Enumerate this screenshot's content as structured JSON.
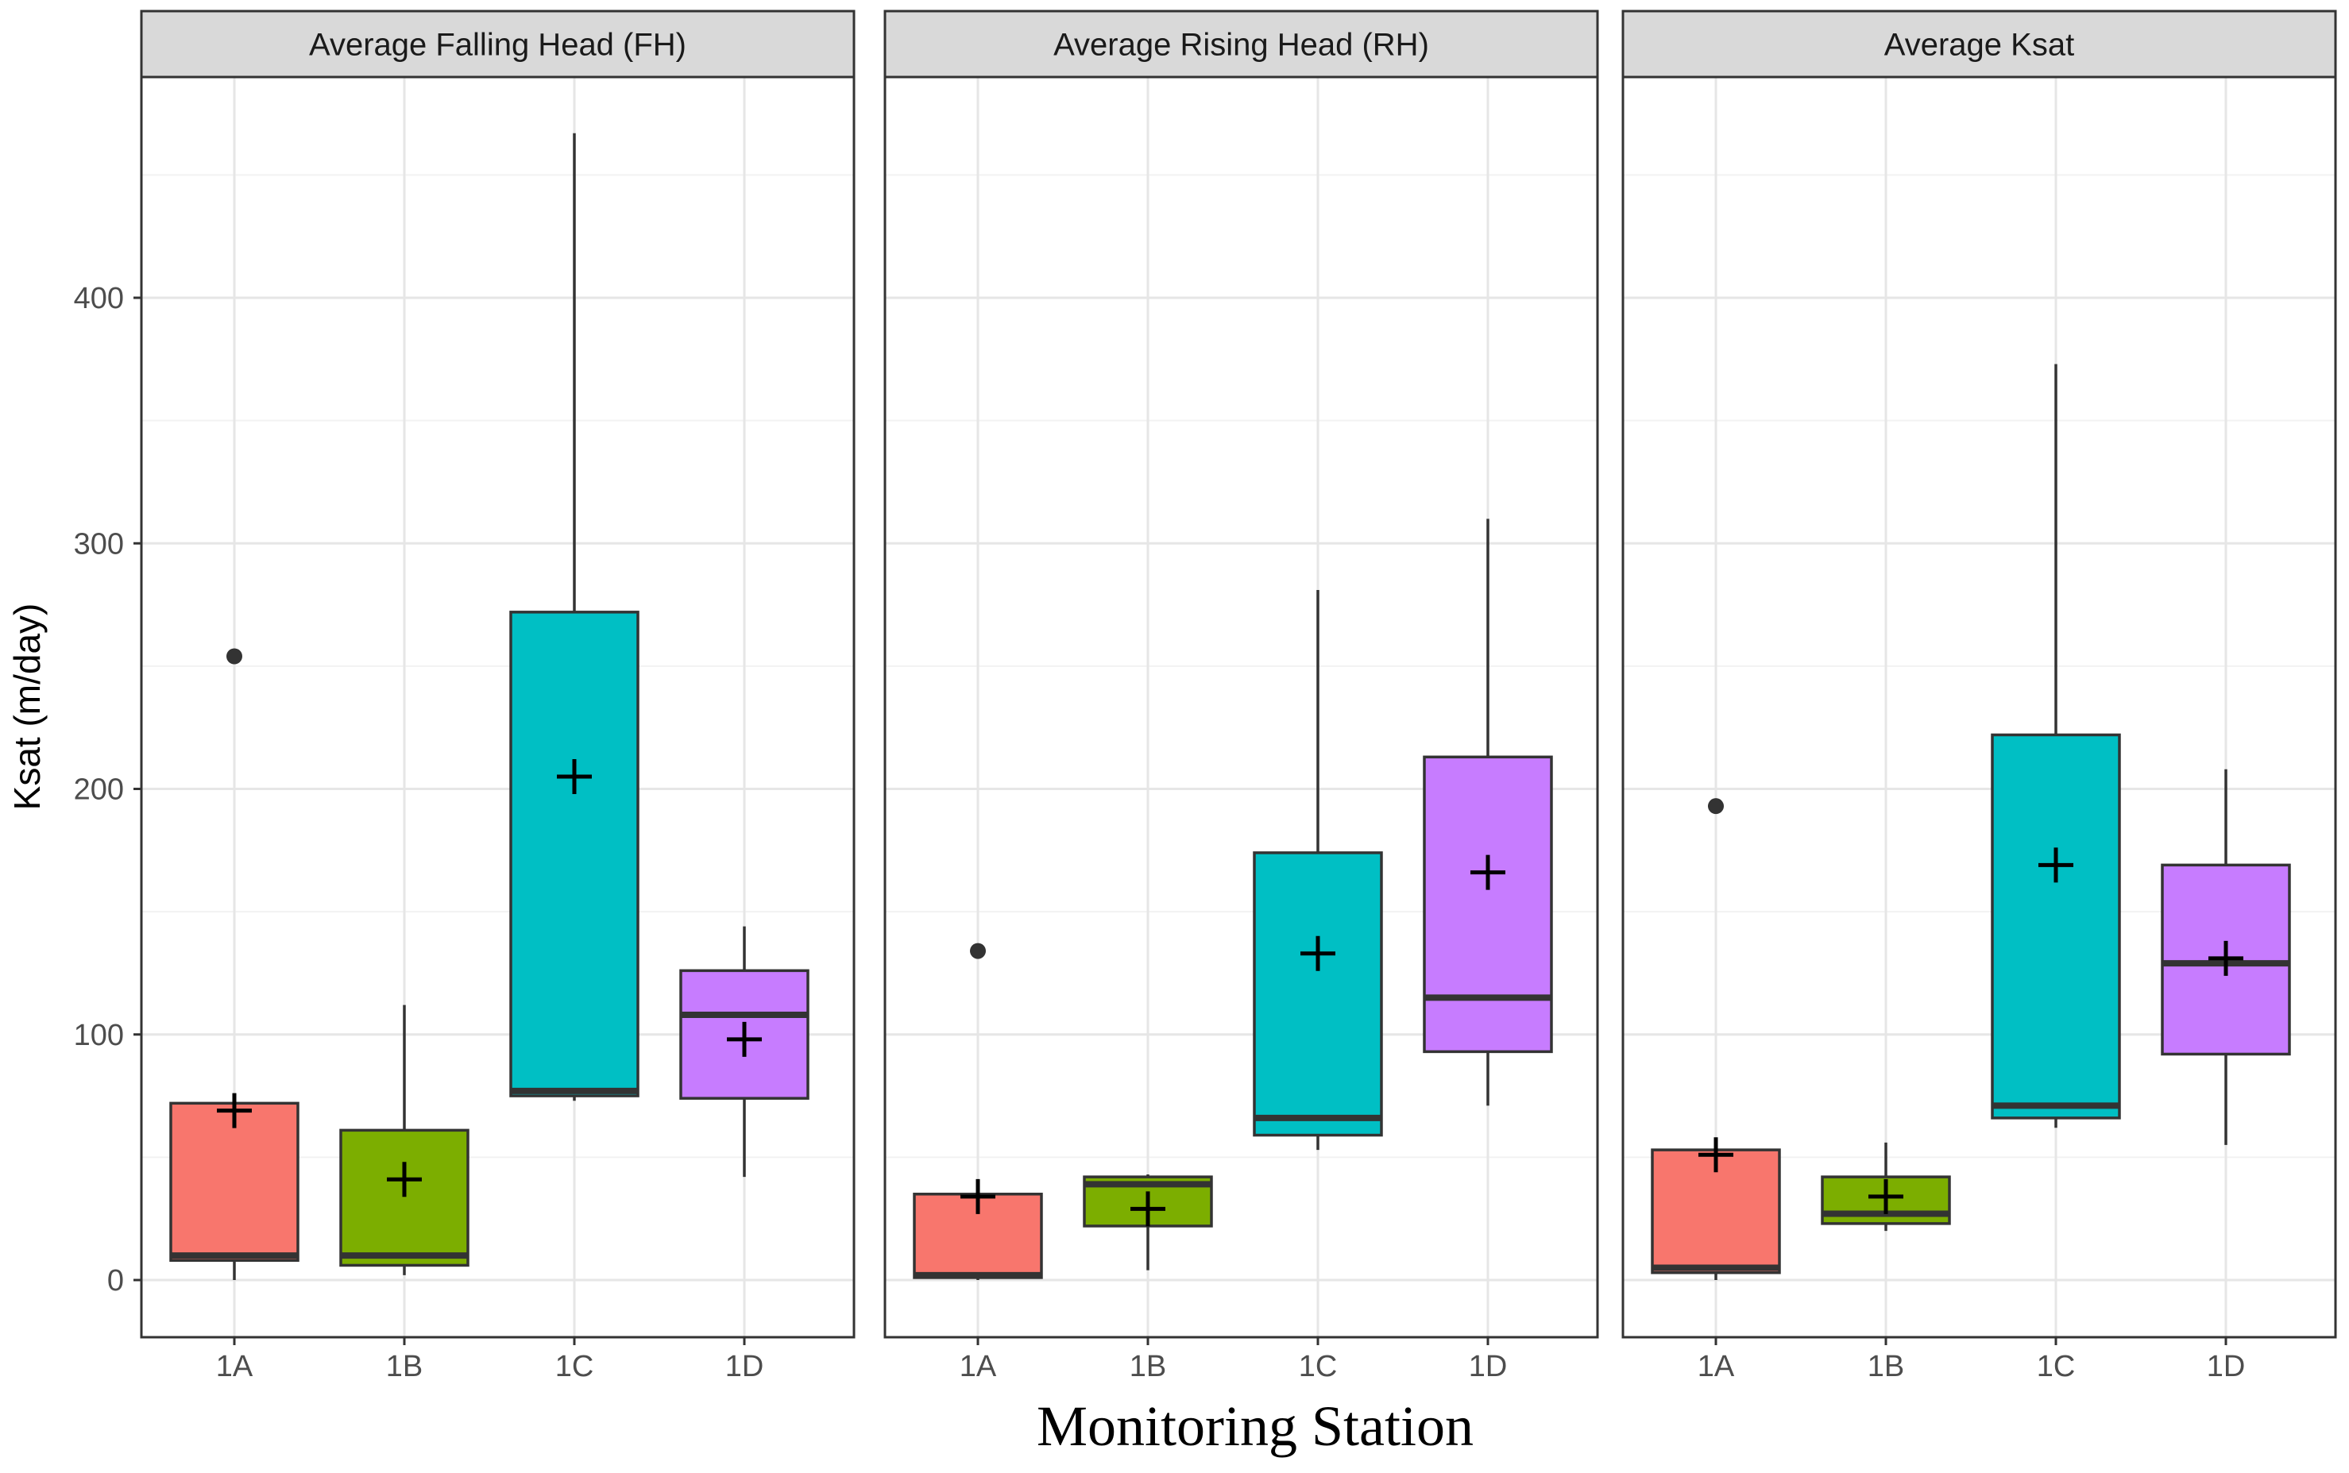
{
  "chart_data": {
    "type": "boxplot",
    "title": "",
    "xlabel": "Monitoring Station",
    "ylabel": "Ksat (m/day)",
    "categories": [
      "1A",
      "1B",
      "1C",
      "1D"
    ],
    "colors": [
      "#F8766D",
      "#7CAE00",
      "#00BFC4",
      "#C77CFF"
    ],
    "ylim": [
      -20,
      490
    ],
    "yticks": [
      0,
      100,
      200,
      300,
      400
    ],
    "grid": true,
    "legend": "none",
    "panels": [
      {
        "title": "Average Falling Head (FH)",
        "boxes": [
          {
            "category": "1A",
            "lower_whisker": 0,
            "q1": 8,
            "median": 10,
            "q3": 72,
            "upper_whisker": 72,
            "mean": 69,
            "outliers": [
              254
            ]
          },
          {
            "category": "1B",
            "lower_whisker": 2,
            "q1": 6,
            "median": 10,
            "q3": 61,
            "upper_whisker": 112,
            "mean": 41,
            "outliers": []
          },
          {
            "category": "1C",
            "lower_whisker": 73,
            "q1": 75,
            "median": 77,
            "q3": 272,
            "upper_whisker": 467,
            "mean": 205,
            "outliers": []
          },
          {
            "category": "1D",
            "lower_whisker": 42,
            "q1": 74,
            "median": 108,
            "q3": 126,
            "upper_whisker": 144,
            "mean": 98,
            "outliers": []
          }
        ]
      },
      {
        "title": "Average Rising Head (RH)",
        "boxes": [
          {
            "category": "1A",
            "lower_whisker": 0,
            "q1": 1,
            "median": 2,
            "q3": 35,
            "upper_whisker": 35,
            "mean": 34,
            "outliers": [
              134
            ]
          },
          {
            "category": "1B",
            "lower_whisker": 4,
            "q1": 22,
            "median": 39,
            "q3": 42,
            "upper_whisker": 43,
            "mean": 29,
            "outliers": []
          },
          {
            "category": "1C",
            "lower_whisker": 53,
            "q1": 59,
            "median": 66,
            "q3": 174,
            "upper_whisker": 281,
            "mean": 133,
            "outliers": []
          },
          {
            "category": "1D",
            "lower_whisker": 71,
            "q1": 93,
            "median": 115,
            "q3": 213,
            "upper_whisker": 310,
            "mean": 166,
            "outliers": []
          }
        ]
      },
      {
        "title": "Average Ksat",
        "boxes": [
          {
            "category": "1A",
            "lower_whisker": 0,
            "q1": 3,
            "median": 5,
            "q3": 53,
            "upper_whisker": 53,
            "mean": 51,
            "outliers": [
              193
            ]
          },
          {
            "category": "1B",
            "lower_whisker": 20,
            "q1": 23,
            "median": 27,
            "q3": 42,
            "upper_whisker": 56,
            "mean": 34,
            "outliers": []
          },
          {
            "category": "1C",
            "lower_whisker": 62,
            "q1": 66,
            "median": 71,
            "q3": 222,
            "upper_whisker": 373,
            "mean": 169,
            "outliers": []
          },
          {
            "category": "1D",
            "lower_whisker": 55,
            "q1": 92,
            "median": 129,
            "q3": 169,
            "upper_whisker": 208,
            "mean": 131,
            "outliers": []
          }
        ]
      }
    ]
  }
}
